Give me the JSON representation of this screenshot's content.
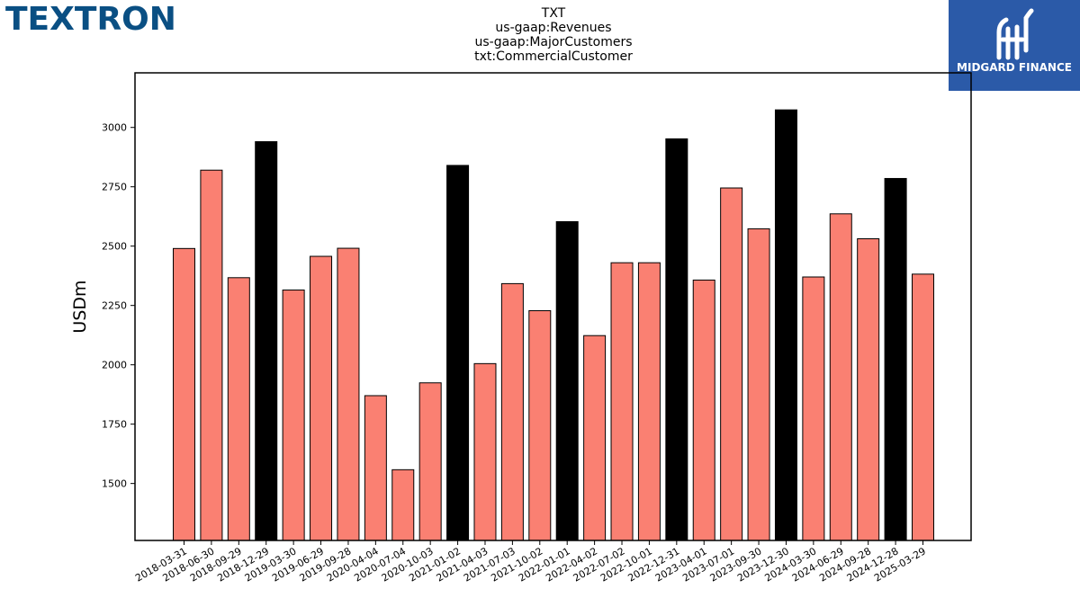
{
  "brand": {
    "logo_text": "TEXTRON"
  },
  "partner": {
    "logo_text": "MIDGARD FINANCE"
  },
  "colors": {
    "regular": "#fa8072",
    "highlight": "#000000",
    "edge": "#000000",
    "brand": "#0a4f83",
    "partner_bg": "#2b5aa8"
  },
  "chart_data": {
    "type": "bar",
    "title": [
      "TXT",
      "us-gaap:Revenues",
      "us-gaap:MajorCustomers",
      "txt:CommercialCustomer"
    ],
    "xlabel": "",
    "ylabel": "USDm",
    "ylim": [
      1260,
      3230
    ],
    "yticks": [
      1500,
      1750,
      2000,
      2250,
      2500,
      2750,
      3000
    ],
    "grid": false,
    "categories": [
      "2018-03-31",
      "2018-06-30",
      "2018-09-29",
      "2018-12-29",
      "2019-03-30",
      "2019-06-29",
      "2019-09-28",
      "2020-04-04",
      "2020-07-04",
      "2020-10-03",
      "2021-01-02",
      "2021-04-03",
      "2021-07-03",
      "2021-10-02",
      "2022-01-01",
      "2022-04-02",
      "2022-07-02",
      "2022-10-01",
      "2022-12-31",
      "2023-04-01",
      "2023-07-01",
      "2023-09-30",
      "2023-12-30",
      "2024-03-30",
      "2024-06-29",
      "2024-09-28",
      "2024-12-28",
      "2025-03-29"
    ],
    "values": [
      2490,
      2820,
      2367,
      2940,
      2315,
      2457,
      2491,
      1870,
      1558,
      1924,
      2840,
      2005,
      2342,
      2228,
      2603,
      2123,
      2430,
      2430,
      2952,
      2357,
      2745,
      2573,
      3074,
      2370,
      2636,
      2531,
      2785,
      2382
    ],
    "highlight": [
      false,
      false,
      false,
      true,
      false,
      false,
      false,
      false,
      false,
      false,
      true,
      false,
      false,
      false,
      true,
      false,
      false,
      false,
      true,
      false,
      false,
      false,
      true,
      false,
      false,
      false,
      true,
      false
    ]
  }
}
